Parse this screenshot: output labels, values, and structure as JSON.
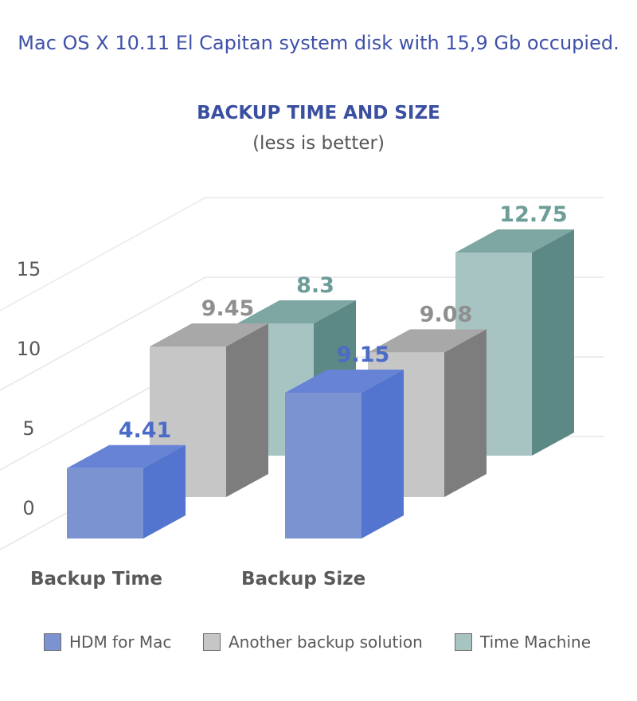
{
  "header": {
    "description": "Mac OS X 10.11 El Capitan system disk with 15,9 Gb occupied."
  },
  "chart_data": {
    "type": "bar",
    "title": "BACKUP TIME AND SIZE",
    "subtitle": "(less is better)",
    "categories": [
      "Backup Time",
      "Backup Size"
    ],
    "series": [
      {
        "name": "HDM for Mac",
        "values": [
          4.41,
          9.15
        ],
        "color": "#7b93d1",
        "side_color": "#5374cf",
        "top_color": "#6683d6",
        "label_color": "#4a6bc8"
      },
      {
        "name": "Another backup solution",
        "values": [
          9.45,
          9.08
        ],
        "color": "#c6c6c6",
        "side_color": "#7d7d7d",
        "top_color": "#a8a8a8",
        "label_color": "#8f8f8f"
      },
      {
        "name": "Time Machine",
        "values": [
          8.3,
          12.75
        ],
        "color": "#a7c4c3",
        "side_color": "#5c8885",
        "top_color": "#7ea7a3",
        "label_color": "#6c9d98"
      }
    ],
    "y_ticks": [
      "0",
      "5",
      "10",
      "15"
    ],
    "ylim": [
      0,
      15
    ],
    "grid": true,
    "legend_position": "bottom"
  }
}
